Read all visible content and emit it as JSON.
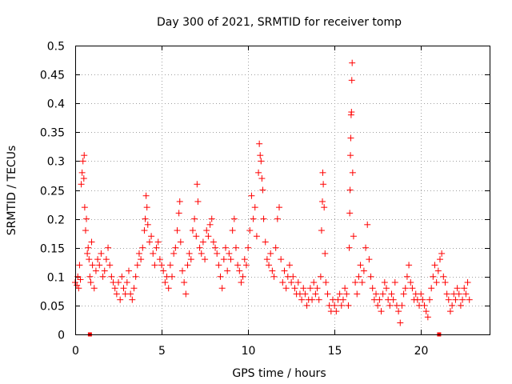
{
  "chart_data": {
    "type": "scatter",
    "title": "Day 300 of 2021, SRMTID for receiver tomp",
    "xlabel": "GPS time / hours",
    "ylabel": "SRMTID / TECUs",
    "xlim": [
      0,
      23.97
    ],
    "ylim": [
      0,
      0.5
    ],
    "x_ticks": [
      0,
      5,
      10,
      15,
      20
    ],
    "x_tick_labels": [
      "0",
      "5",
      "10",
      "15",
      "20"
    ],
    "y_ticks": [
      0,
      0.05,
      0.1,
      0.15,
      0.2,
      0.25,
      0.3,
      0.35,
      0.4,
      0.45,
      0.5
    ],
    "y_tick_labels": [
      "0",
      "0.05",
      "0.1",
      "0.15",
      "0.2",
      "0.25",
      "0.3",
      "0.35",
      "0.4",
      "0.45",
      "0.5"
    ],
    "grid": true,
    "marker": "+",
    "color": "#ff0000",
    "series": [
      {
        "name": "SRMTID",
        "points": [
          [
            0.0,
            0.09
          ],
          [
            0.1,
            0.085
          ],
          [
            0.15,
            0.1
          ],
          [
            0.2,
            0.08
          ],
          [
            0.25,
            0.12
          ],
          [
            0.3,
            0.095
          ],
          [
            0.35,
            0.26
          ],
          [
            0.4,
            0.28
          ],
          [
            0.45,
            0.3
          ],
          [
            0.5,
            0.27
          ],
          [
            0.52,
            0.31
          ],
          [
            0.55,
            0.22
          ],
          [
            0.6,
            0.18
          ],
          [
            0.65,
            0.2
          ],
          [
            0.7,
            0.14
          ],
          [
            0.75,
            0.15
          ],
          [
            0.8,
            0.13
          ],
          [
            0.85,
            0.1
          ],
          [
            0.9,
            0.09
          ],
          [
            0.95,
            0.16
          ],
          [
            1.0,
            0.12
          ],
          [
            1.1,
            0.08
          ],
          [
            1.2,
            0.11
          ],
          [
            1.3,
            0.13
          ],
          [
            1.4,
            0.12
          ],
          [
            1.5,
            0.14
          ],
          [
            1.6,
            0.1
          ],
          [
            1.7,
            0.11
          ],
          [
            1.8,
            0.13
          ],
          [
            1.9,
            0.15
          ],
          [
            2.0,
            0.12
          ],
          [
            2.1,
            0.1
          ],
          [
            2.2,
            0.09
          ],
          [
            2.3,
            0.08
          ],
          [
            2.4,
            0.07
          ],
          [
            2.5,
            0.09
          ],
          [
            2.6,
            0.06
          ],
          [
            2.7,
            0.1
          ],
          [
            2.8,
            0.08
          ],
          [
            2.9,
            0.07
          ],
          [
            3.0,
            0.09
          ],
          [
            3.1,
            0.11
          ],
          [
            3.2,
            0.07
          ],
          [
            3.3,
            0.06
          ],
          [
            3.4,
            0.08
          ],
          [
            3.5,
            0.1
          ],
          [
            3.6,
            0.12
          ],
          [
            3.7,
            0.14
          ],
          [
            3.8,
            0.13
          ],
          [
            3.9,
            0.15
          ],
          [
            4.0,
            0.18
          ],
          [
            4.05,
            0.2
          ],
          [
            4.1,
            0.24
          ],
          [
            4.15,
            0.22
          ],
          [
            4.2,
            0.19
          ],
          [
            4.3,
            0.16
          ],
          [
            4.4,
            0.17
          ],
          [
            4.5,
            0.14
          ],
          [
            4.6,
            0.12
          ],
          [
            4.7,
            0.15
          ],
          [
            4.8,
            0.16
          ],
          [
            4.9,
            0.13
          ],
          [
            5.0,
            0.12
          ],
          [
            5.1,
            0.11
          ],
          [
            5.2,
            0.09
          ],
          [
            5.3,
            0.1
          ],
          [
            5.4,
            0.08
          ],
          [
            5.5,
            0.12
          ],
          [
            5.6,
            0.1
          ],
          [
            5.7,
            0.14
          ],
          [
            5.8,
            0.15
          ],
          [
            5.9,
            0.18
          ],
          [
            6.0,
            0.21
          ],
          [
            6.05,
            0.23
          ],
          [
            6.1,
            0.16
          ],
          [
            6.2,
            0.11
          ],
          [
            6.3,
            0.09
          ],
          [
            6.4,
            0.07
          ],
          [
            6.5,
            0.12
          ],
          [
            6.6,
            0.14
          ],
          [
            6.7,
            0.13
          ],
          [
            6.8,
            0.18
          ],
          [
            6.9,
            0.2
          ],
          [
            7.0,
            0.17
          ],
          [
            7.05,
            0.26
          ],
          [
            7.1,
            0.23
          ],
          [
            7.2,
            0.15
          ],
          [
            7.3,
            0.14
          ],
          [
            7.4,
            0.16
          ],
          [
            7.5,
            0.13
          ],
          [
            7.6,
            0.18
          ],
          [
            7.7,
            0.17
          ],
          [
            7.8,
            0.19
          ],
          [
            7.9,
            0.2
          ],
          [
            8.0,
            0.16
          ],
          [
            8.1,
            0.15
          ],
          [
            8.2,
            0.14
          ],
          [
            8.3,
            0.12
          ],
          [
            8.4,
            0.1
          ],
          [
            8.5,
            0.08
          ],
          [
            8.6,
            0.13
          ],
          [
            8.7,
            0.15
          ],
          [
            8.8,
            0.11
          ],
          [
            8.9,
            0.14
          ],
          [
            9.0,
            0.13
          ],
          [
            9.1,
            0.18
          ],
          [
            9.2,
            0.2
          ],
          [
            9.3,
            0.15
          ],
          [
            9.4,
            0.12
          ],
          [
            9.5,
            0.11
          ],
          [
            9.6,
            0.09
          ],
          [
            9.7,
            0.1
          ],
          [
            9.8,
            0.13
          ],
          [
            9.9,
            0.12
          ],
          [
            10.0,
            0.15
          ],
          [
            10.1,
            0.18
          ],
          [
            10.2,
            0.24
          ],
          [
            10.3,
            0.2
          ],
          [
            10.4,
            0.22
          ],
          [
            10.5,
            0.17
          ],
          [
            10.6,
            0.28
          ],
          [
            10.65,
            0.33
          ],
          [
            10.7,
            0.31
          ],
          [
            10.75,
            0.3
          ],
          [
            10.8,
            0.27
          ],
          [
            10.85,
            0.25
          ],
          [
            10.9,
            0.2
          ],
          [
            11.0,
            0.16
          ],
          [
            11.1,
            0.13
          ],
          [
            11.2,
            0.12
          ],
          [
            11.3,
            0.14
          ],
          [
            11.4,
            0.11
          ],
          [
            11.5,
            0.1
          ],
          [
            11.6,
            0.15
          ],
          [
            11.7,
            0.2
          ],
          [
            11.8,
            0.22
          ],
          [
            11.9,
            0.13
          ],
          [
            12.0,
            0.09
          ],
          [
            12.1,
            0.11
          ],
          [
            12.2,
            0.08
          ],
          [
            12.3,
            0.1
          ],
          [
            12.4,
            0.12
          ],
          [
            12.5,
            0.09
          ],
          [
            12.6,
            0.1
          ],
          [
            12.7,
            0.08
          ],
          [
            12.8,
            0.07
          ],
          [
            12.9,
            0.09
          ],
          [
            13.0,
            0.07
          ],
          [
            13.1,
            0.06
          ],
          [
            13.2,
            0.08
          ],
          [
            13.3,
            0.07
          ],
          [
            13.4,
            0.05
          ],
          [
            13.5,
            0.06
          ],
          [
            13.6,
            0.08
          ],
          [
            13.7,
            0.06
          ],
          [
            13.8,
            0.09
          ],
          [
            13.9,
            0.07
          ],
          [
            14.0,
            0.08
          ],
          [
            14.1,
            0.06
          ],
          [
            14.2,
            0.1
          ],
          [
            14.25,
            0.18
          ],
          [
            14.3,
            0.23
          ],
          [
            14.32,
            0.28
          ],
          [
            14.35,
            0.26
          ],
          [
            14.4,
            0.22
          ],
          [
            14.45,
            0.14
          ],
          [
            14.5,
            0.09
          ],
          [
            14.6,
            0.07
          ],
          [
            14.7,
            0.05
          ],
          [
            14.8,
            0.04
          ],
          [
            14.9,
            0.06
          ],
          [
            15.0,
            0.05
          ],
          [
            15.1,
            0.04
          ],
          [
            15.2,
            0.06
          ],
          [
            15.3,
            0.07
          ],
          [
            15.4,
            0.05
          ],
          [
            15.5,
            0.06
          ],
          [
            15.6,
            0.08
          ],
          [
            15.7,
            0.07
          ],
          [
            15.8,
            0.05
          ],
          [
            15.85,
            0.15
          ],
          [
            15.88,
            0.21
          ],
          [
            15.9,
            0.25
          ],
          [
            15.92,
            0.31
          ],
          [
            15.94,
            0.34
          ],
          [
            15.96,
            0.38
          ],
          [
            15.98,
            0.385
          ],
          [
            16.0,
            0.44
          ],
          [
            16.02,
            0.47
          ],
          [
            16.05,
            0.28
          ],
          [
            16.1,
            0.17
          ],
          [
            16.2,
            0.09
          ],
          [
            16.3,
            0.07
          ],
          [
            16.4,
            0.1
          ],
          [
            16.5,
            0.12
          ],
          [
            16.6,
            0.09
          ],
          [
            16.7,
            0.11
          ],
          [
            16.8,
            0.15
          ],
          [
            16.9,
            0.19
          ],
          [
            17.0,
            0.13
          ],
          [
            17.1,
            0.1
          ],
          [
            17.2,
            0.08
          ],
          [
            17.3,
            0.06
          ],
          [
            17.4,
            0.07
          ],
          [
            17.5,
            0.05
          ],
          [
            17.6,
            0.06
          ],
          [
            17.7,
            0.04
          ],
          [
            17.8,
            0.07
          ],
          [
            17.9,
            0.09
          ],
          [
            18.0,
            0.08
          ],
          [
            18.1,
            0.06
          ],
          [
            18.2,
            0.05
          ],
          [
            18.3,
            0.07
          ],
          [
            18.4,
            0.06
          ],
          [
            18.5,
            0.09
          ],
          [
            18.6,
            0.05
          ],
          [
            18.7,
            0.04
          ],
          [
            18.8,
            0.02
          ],
          [
            18.9,
            0.05
          ],
          [
            19.0,
            0.07
          ],
          [
            19.1,
            0.08
          ],
          [
            19.2,
            0.1
          ],
          [
            19.3,
            0.12
          ],
          [
            19.4,
            0.09
          ],
          [
            19.5,
            0.08
          ],
          [
            19.6,
            0.06
          ],
          [
            19.7,
            0.07
          ],
          [
            19.8,
            0.06
          ],
          [
            19.9,
            0.05
          ],
          [
            20.0,
            0.07
          ],
          [
            20.1,
            0.06
          ],
          [
            20.2,
            0.05
          ],
          [
            20.3,
            0.04
          ],
          [
            20.4,
            0.03
          ],
          [
            20.5,
            0.06
          ],
          [
            20.6,
            0.08
          ],
          [
            20.7,
            0.1
          ],
          [
            20.8,
            0.12
          ],
          [
            20.9,
            0.09
          ],
          [
            21.0,
            0.11
          ],
          [
            21.1,
            0.13
          ],
          [
            21.2,
            0.14
          ],
          [
            21.3,
            0.1
          ],
          [
            21.4,
            0.09
          ],
          [
            21.5,
            0.07
          ],
          [
            21.6,
            0.06
          ],
          [
            21.7,
            0.04
          ],
          [
            21.8,
            0.05
          ],
          [
            21.9,
            0.07
          ],
          [
            22.0,
            0.06
          ],
          [
            22.1,
            0.08
          ],
          [
            22.2,
            0.07
          ],
          [
            22.3,
            0.05
          ],
          [
            22.4,
            0.06
          ],
          [
            22.5,
            0.08
          ],
          [
            22.6,
            0.07
          ],
          [
            22.7,
            0.09
          ],
          [
            22.8,
            0.06
          ]
        ]
      }
    ],
    "baseline_markers": [
      {
        "x": 0.85,
        "y": 0
      },
      {
        "x": 21.05,
        "y": 0
      }
    ]
  }
}
